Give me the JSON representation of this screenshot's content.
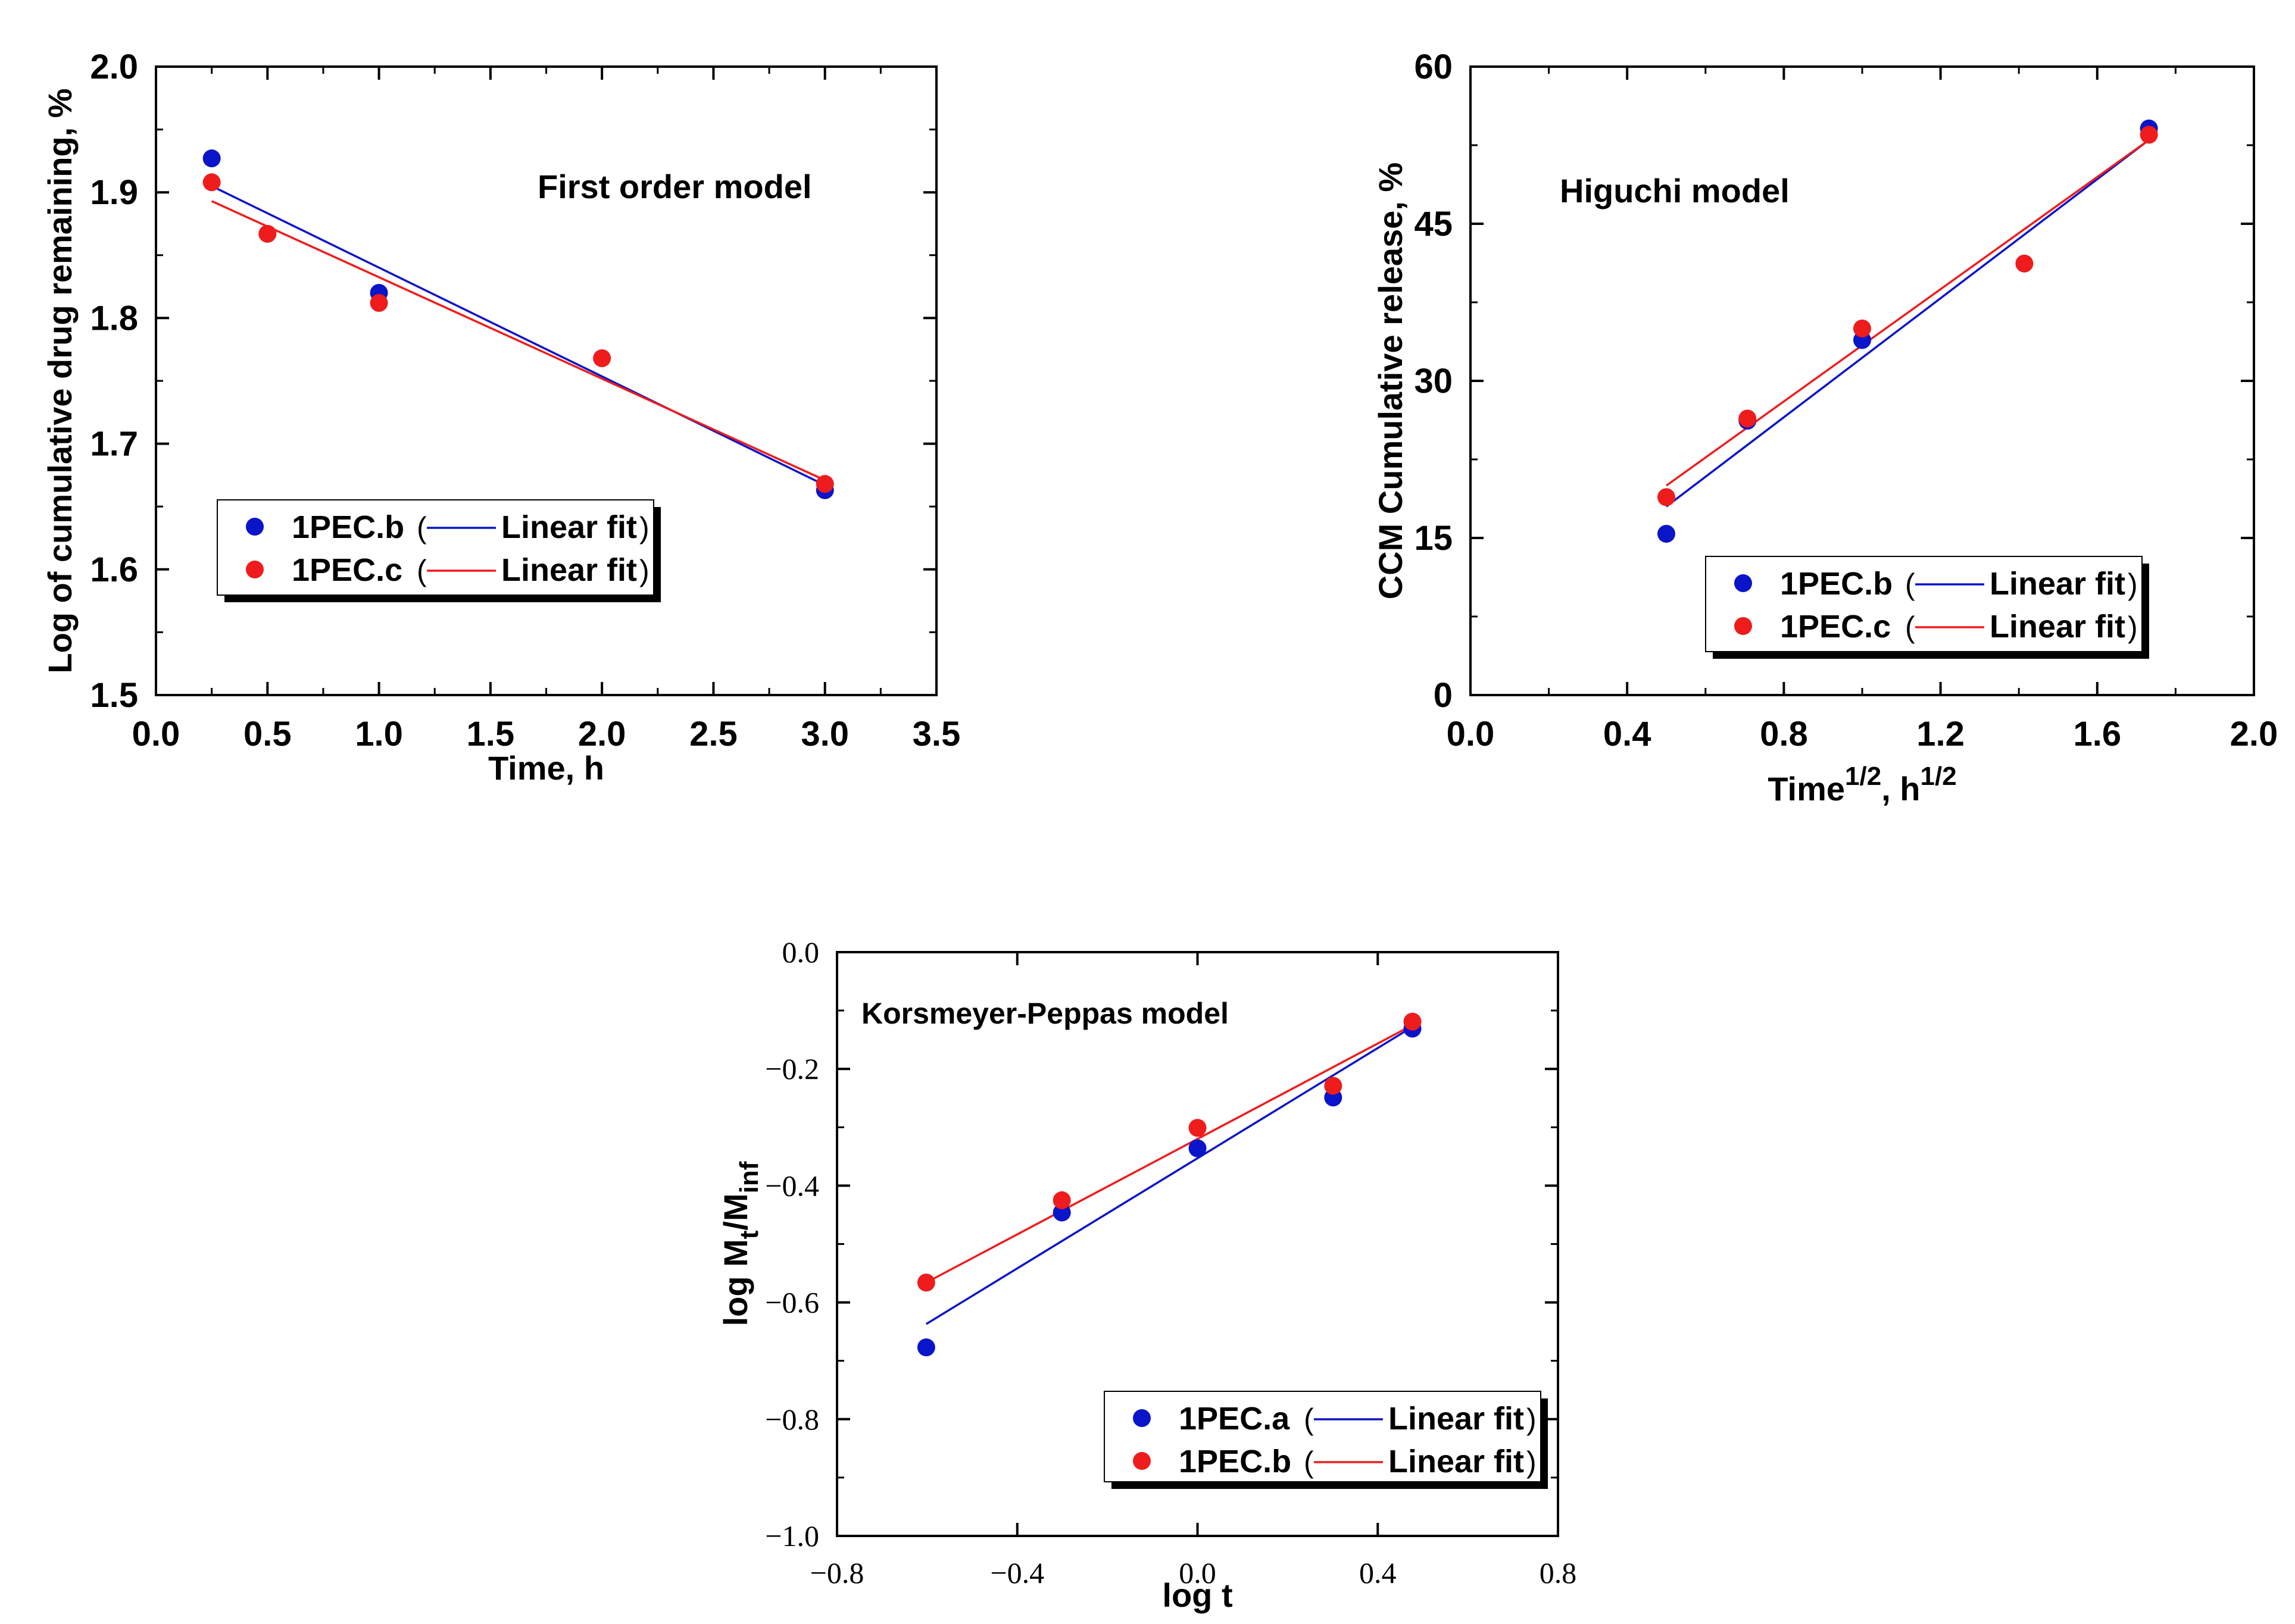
{
  "chart_data": [
    {
      "type": "scatter",
      "title": "First order model",
      "xlabel": "Time, h",
      "ylabel": "Log of cumulative drug remaining, %",
      "xlim": [
        0.0,
        3.5
      ],
      "ylim": [
        1.5,
        2.0
      ],
      "xticks": [
        "0.0",
        "0.5",
        "1.0",
        "1.5",
        "2.0",
        "2.5",
        "3.0",
        "3.5"
      ],
      "yticks": [
        "1.5",
        "1.6",
        "1.7",
        "1.8",
        "1.9",
        "2.0"
      ],
      "legend_position": "lower-left",
      "series": [
        {
          "name": "1PEC.b",
          "fit_label": "Linear fit",
          "color": "#0a14c8",
          "x": [
            0.25,
            1.0,
            3.0
          ],
          "y": [
            1.927,
            1.82,
            1.663
          ],
          "fit": [
            [
              0.25,
              1.905
            ],
            [
              3.0,
              1.667
            ]
          ]
        },
        {
          "name": "1PEC.c",
          "fit_label": "Linear fit",
          "color": "#ee1c1c",
          "x": [
            0.25,
            0.5,
            1.0,
            2.0,
            3.0
          ],
          "y": [
            1.908,
            1.867,
            1.812,
            1.768,
            1.668
          ],
          "fit": [
            [
              0.25,
              1.893
            ],
            [
              3.0,
              1.671
            ]
          ]
        }
      ]
    },
    {
      "type": "scatter",
      "title": "Higuchi model",
      "xlabel": "Time",
      "xlabel_sup": "1/2",
      "xlabel_mid": ", h",
      "xlabel_sup2": "1/2",
      "ylabel": "CCM Cumulative release, %",
      "xlim": [
        0.0,
        2.0
      ],
      "ylim": [
        0,
        60
      ],
      "xticks": [
        "0.0",
        "0.4",
        "0.8",
        "1.2",
        "1.6",
        "2.0"
      ],
      "yticks": [
        "0",
        "15",
        "30",
        "45",
        "60"
      ],
      "legend_position": "lower-right",
      "series": [
        {
          "name": "1PEC.b",
          "fit_label": "Linear fit",
          "color": "#0a14c8",
          "x": [
            0.5,
            0.707,
            1.0,
            1.732
          ],
          "y": [
            15.4,
            26.2,
            33.9,
            54.1
          ],
          "fit": [
            [
              0.5,
              18.0
            ],
            [
              1.732,
              53.0
            ]
          ]
        },
        {
          "name": "1PEC.c",
          "fit_label": "Linear fit",
          "color": "#ee1c1c",
          "x": [
            0.5,
            0.707,
            1.0,
            1.414,
            1.732
          ],
          "y": [
            18.9,
            26.4,
            35.0,
            41.2,
            53.5
          ],
          "fit": [
            [
              0.5,
              20.0
            ],
            [
              1.732,
              53.0
            ]
          ]
        }
      ]
    },
    {
      "type": "scatter",
      "title": "Korsmeyer-Peppas model",
      "xlabel": "log t",
      "ylabel_main": "log M",
      "ylabel_sub1": "t",
      "ylabel_slash": "/M",
      "ylabel_sub2": "inf",
      "xlim": [
        -0.8,
        0.8
      ],
      "ylim": [
        -1.0,
        0.0
      ],
      "xticks": [
        "−0.8",
        "−0.4",
        "0.0",
        "0.4",
        "0.8"
      ],
      "yticks": [
        "−1.0",
        "−0.8",
        "−0.6",
        "−0.4",
        "−0.2",
        "0.0"
      ],
      "legend_position": "lower-right",
      "series": [
        {
          "name": "1PEC.a",
          "fit_label": "Linear fit",
          "color": "#0a14c8",
          "x": [
            -0.602,
            -0.301,
            0.0,
            0.301,
            0.477
          ],
          "y": [
            -0.677,
            -0.446,
            -0.336,
            -0.249,
            -0.131
          ],
          "fit": [
            [
              -0.602,
              -0.637
            ],
            [
              0.477,
              -0.128
            ]
          ]
        },
        {
          "name": "1PEC.b",
          "fit_label": "Linear fit",
          "color": "#ee1c1c",
          "x": [
            -0.602,
            -0.301,
            0.0,
            0.301,
            0.477
          ],
          "y": [
            -0.566,
            -0.425,
            -0.301,
            -0.229,
            -0.119
          ],
          "fit": [
            [
              -0.602,
              -0.566
            ],
            [
              0.477,
              -0.125
            ]
          ]
        }
      ]
    }
  ]
}
